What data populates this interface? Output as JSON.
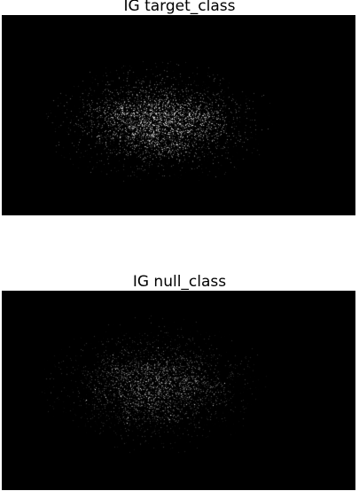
{
  "figure": {
    "background": "#ffffff",
    "panels": [
      {
        "id": "target",
        "title": "IG target_class",
        "image_background": "#000000",
        "content": "sparse-bright-speckle-attribution-map"
      },
      {
        "id": "null",
        "title": "IG null_class",
        "image_background": "#000000",
        "content": "sparse-dim-speckle-attribution-map"
      }
    ]
  }
}
